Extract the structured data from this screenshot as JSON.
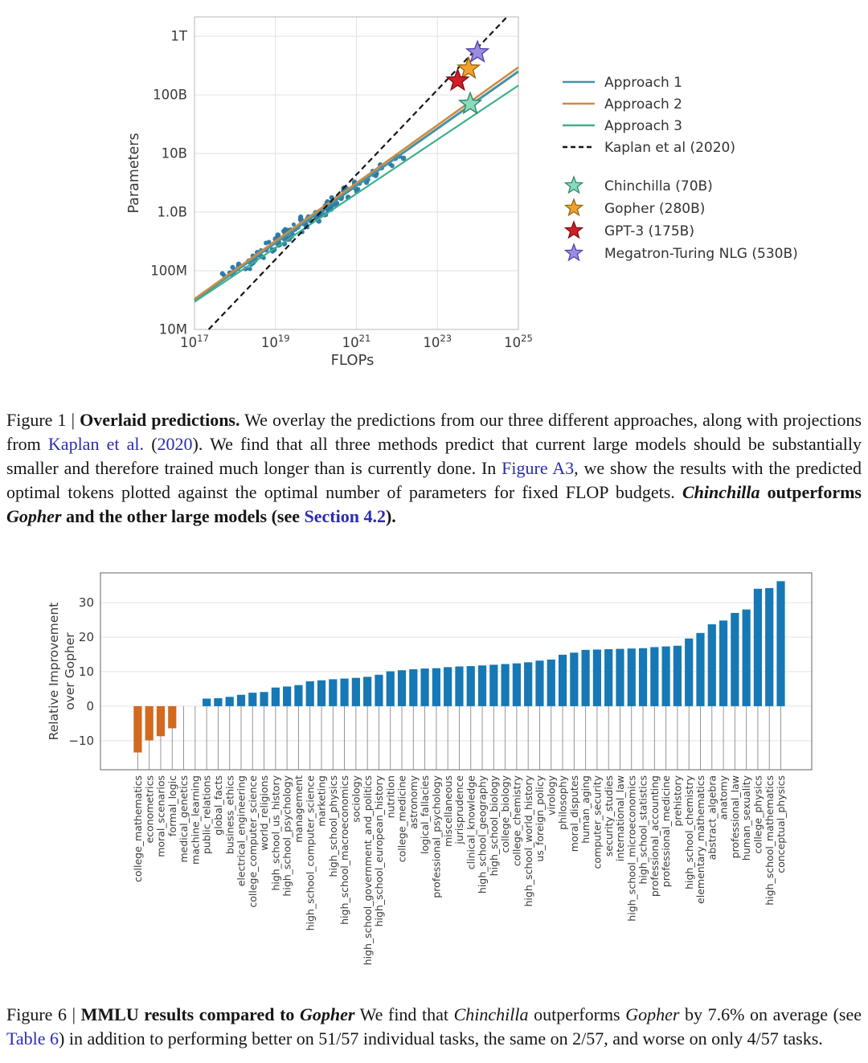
{
  "figure1_caption": {
    "segments": [
      {
        "t": "Figure 1 | ",
        "s": "n"
      },
      {
        "t": "Overlaid predictions.",
        "s": "b"
      },
      {
        "t": " We overlay the predictions from our three different approaches, along with projections from ",
        "s": "n"
      },
      {
        "t": "Kaplan et al.",
        "s": "link"
      },
      {
        "t": " (",
        "s": "n"
      },
      {
        "t": "2020",
        "s": "link"
      },
      {
        "t": "). We find that all three methods predict that current large models should be substantially smaller and therefore trained much longer than is currently done. In ",
        "s": "n"
      },
      {
        "t": "Figure A3",
        "s": "link"
      },
      {
        "t": ", we show the results with the predicted optimal tokens plotted against the optimal number of parameters for fixed FLOP budgets. ",
        "s": "n"
      },
      {
        "t": "Chinchilla",
        "s": "bi"
      },
      {
        "t": " outperforms ",
        "s": "b"
      },
      {
        "t": "Gopher",
        "s": "bi"
      },
      {
        "t": " and the other large models (see ",
        "s": "b"
      },
      {
        "t": "Section 4.2",
        "s": "blink"
      },
      {
        "t": ").",
        "s": "b"
      }
    ]
  },
  "figure6_caption": {
    "segments": [
      {
        "t": "Figure 6 | ",
        "s": "n"
      },
      {
        "t": "MMLU results compared to ",
        "s": "b"
      },
      {
        "t": "Gopher",
        "s": "bi"
      },
      {
        "t": " We find that ",
        "s": "n"
      },
      {
        "t": "Chinchilla",
        "s": "i"
      },
      {
        "t": " outperforms ",
        "s": "n"
      },
      {
        "t": "Gopher",
        "s": "i"
      },
      {
        "t": " by 7.6% on average (see ",
        "s": "n"
      },
      {
        "t": "Table 6",
        "s": "link"
      },
      {
        "t": ") in addition to performing better on 51/57 individual tasks, the same on 2/57, and worse on only 4/57 tasks.",
        "s": "n"
      }
    ]
  },
  "chart_data": [
    {
      "type": "scatter",
      "title": "",
      "xlabel": "FLOPs",
      "ylabel": "Parameters",
      "x_log_range": [
        17,
        25
      ],
      "y_log_range": [
        7,
        12.33
      ],
      "x_ticks": [
        {
          "log": 17,
          "exp": "17"
        },
        {
          "log": 19,
          "exp": "19"
        },
        {
          "log": 21,
          "exp": "21"
        },
        {
          "log": 23,
          "exp": "23"
        },
        {
          "log": 25,
          "exp": "25"
        }
      ],
      "y_ticks": [
        {
          "log": 7,
          "label": "10M"
        },
        {
          "log": 8,
          "label": "100M"
        },
        {
          "log": 9,
          "label": "1.0B"
        },
        {
          "log": 10,
          "label": "10B"
        },
        {
          "log": 11,
          "label": "100B"
        },
        {
          "log": 12,
          "label": "1T"
        }
      ],
      "grid_x_logs": [
        19,
        21,
        23
      ],
      "grid_y_logs": [
        8,
        9,
        10,
        11,
        12
      ],
      "grid_color": "#e2e2e2",
      "spine_color": "#c4c4c4",
      "tick_color": "#3a3a3a",
      "lines": [
        {
          "name": "Approach 1",
          "color": "#4593a4",
          "width": 3,
          "dash": null,
          "pts": [
            [
              17,
              7.5
            ],
            [
              25,
              11.4
            ]
          ]
        },
        {
          "name": "Approach 2",
          "color": "#cd8b43",
          "width": 2.6,
          "dash": null,
          "pts": [
            [
              17,
              7.52
            ],
            [
              25,
              11.47
            ]
          ]
        },
        {
          "name": "Approach 3",
          "color": "#3eb08e",
          "width": 2.2,
          "dash": null,
          "pts": [
            [
              17,
              7.47
            ],
            [
              25,
              11.16
            ]
          ]
        },
        {
          "name": "Kaplan et al (2020)",
          "color": "#161616",
          "width": 2.2,
          "dash": "7,4.5",
          "pts": [
            [
              17.35,
              7.0
            ],
            [
              24.72,
              12.33
            ]
          ]
        }
      ],
      "stars": [
        {
          "name": "Chinchilla (70B)",
          "color": "#8bd8ba",
          "edge": "#2a8a6c",
          "log_x": 23.81,
          "log_y": 10.845
        },
        {
          "name": "Gopher (280B)",
          "color": "#efa32e",
          "edge": "#9c6410",
          "log_x": 23.77,
          "log_y": 11.447
        },
        {
          "name": "GPT-3 (175B)",
          "color": "#d21f26",
          "edge": "#7e1014",
          "log_x": 23.5,
          "log_y": 11.243
        },
        {
          "name": "Megatron-Turing NLG (530B)",
          "color": "#9a8ce0",
          "edge": "#5346ac",
          "log_x": 23.99,
          "log_y": 11.724
        }
      ],
      "scatter": {
        "color": "#2878a8",
        "radius": 2.6,
        "seed": 11,
        "x_jitter_note": "models trained on IsoFLOP rows; points generated from rows spec",
        "rows": [
          {
            "log_n": 7.95,
            "log_c": 17.92,
            "n": 6,
            "spread": 0.55
          },
          {
            "log_n": 8.05,
            "log_c": 18.13,
            "n": 6,
            "spread": 0.5
          },
          {
            "log_n": 8.15,
            "log_c": 18.33,
            "n": 7,
            "spread": 0.5
          },
          {
            "log_n": 8.25,
            "log_c": 18.54,
            "n": 7,
            "spread": 0.5
          },
          {
            "log_n": 8.35,
            "log_c": 18.74,
            "n": 8,
            "spread": 0.5
          },
          {
            "log_n": 8.47,
            "log_c": 18.99,
            "n": 9,
            "spread": 0.55
          },
          {
            "log_n": 8.58,
            "log_c": 19.22,
            "n": 9,
            "spread": 0.5
          },
          {
            "log_n": 8.68,
            "log_c": 19.42,
            "n": 10,
            "spread": 0.5
          },
          {
            "log_n": 8.78,
            "log_c": 19.63,
            "n": 10,
            "spread": 0.5
          },
          {
            "log_n": 8.88,
            "log_c": 19.83,
            "n": 10,
            "spread": 0.5
          },
          {
            "log_n": 8.97,
            "log_c": 20.02,
            "n": 9,
            "spread": 0.45
          },
          {
            "log_n": 9.06,
            "log_c": 20.2,
            "n": 9,
            "spread": 0.45
          },
          {
            "log_n": 9.15,
            "log_c": 20.38,
            "n": 8,
            "spread": 0.45
          },
          {
            "log_n": 9.26,
            "log_c": 20.61,
            "n": 8,
            "spread": 0.45
          },
          {
            "log_n": 9.38,
            "log_c": 20.86,
            "n": 7,
            "spread": 0.4
          },
          {
            "log_n": 9.52,
            "log_c": 21.14,
            "n": 6,
            "spread": 0.4
          },
          {
            "log_n": 9.66,
            "log_c": 21.43,
            "n": 5,
            "spread": 0.35
          },
          {
            "log_n": 9.8,
            "log_c": 21.72,
            "n": 5,
            "spread": 0.35
          },
          {
            "log_n": 9.95,
            "log_c": 22.03,
            "n": 5,
            "spread": 0.35
          }
        ]
      },
      "legend": {
        "line_entries": [
          "Approach 1",
          "Approach 2",
          "Approach 3",
          "Kaplan et al (2020)"
        ],
        "star_entries": [
          "Chinchilla (70B)",
          "Gopher (280B)",
          "GPT-3 (175B)",
          "Megatron-Turing NLG (530B)"
        ],
        "text_color": "#333333",
        "position": "right"
      }
    },
    {
      "type": "bar",
      "title": "",
      "xlabel": "",
      "ylabel": "Relative Improvement\nover Gopher",
      "ylabel_lines": [
        "Relative Improvement",
        "over Gopher"
      ],
      "ylim": [
        -18.4,
        38.6
      ],
      "y_ticks": [
        30,
        20,
        10,
        0,
        -10
      ],
      "grid_color": "#e3e3e3",
      "spine_color": "#7d7d7d",
      "stem_color": "#8a8a8a",
      "tick_color": "#3a3a3a",
      "positive_color": "#1678b4",
      "negative_color": "#d2691e",
      "categories": [
        "college_mathematics",
        "econometrics",
        "moral_scenarios",
        "formal_logic",
        "medical_genetics",
        "machine_learning",
        "public_relations",
        "global_facts",
        "business_ethics",
        "electrical_engineering",
        "college_computer_science",
        "world_religions",
        "high_school_us_history",
        "high_school_psychology",
        "management",
        "high_school_computer_science",
        "marketing",
        "high_school_physics",
        "high_school_macroeconomics",
        "sociology",
        "high_school_government_and_politics",
        "high_school_european_history",
        "nutrition",
        "college_medicine",
        "astronomy",
        "logical_fallacies",
        "professional_psychology",
        "miscellaneous",
        "jurisprudence",
        "clinical_knowledge",
        "high_school_geography",
        "high_school_biology",
        "college_biology",
        "college_chemistry",
        "high_school_world_history",
        "us_foreign_policy",
        "virology",
        "philosophy",
        "moral_disputes",
        "human_aging",
        "computer_security",
        "security_studies",
        "international_law",
        "high_school_microeconomics",
        "high_school_statistics",
        "professional_accounting",
        "professional_medicine",
        "prehistory",
        "high_school_chemistry",
        "elementary_mathematics",
        "abstract_algebra",
        "anatomy",
        "professional_law",
        "human_sexuality",
        "college_physics",
        "high_school_mathematics",
        "conceptual_physics"
      ],
      "values": [
        -13.4,
        -9.9,
        -8.7,
        -6.4,
        0,
        0,
        2.2,
        2.3,
        2.7,
        3.3,
        3.9,
        4.1,
        5.4,
        5.7,
        6.1,
        7.2,
        7.5,
        7.8,
        8.0,
        8.2,
        8.5,
        9.1,
        10.1,
        10.4,
        10.7,
        10.9,
        11.0,
        11.3,
        11.5,
        11.6,
        11.8,
        12.0,
        12.2,
        12.4,
        12.7,
        13.2,
        13.5,
        14.9,
        15.5,
        16.3,
        16.4,
        16.5,
        16.6,
        16.7,
        16.8,
        17.1,
        17.3,
        17.5,
        19.6,
        21.2,
        23.7,
        24.8,
        27.0,
        28.0,
        34.0,
        34.2,
        36.2
      ]
    }
  ]
}
